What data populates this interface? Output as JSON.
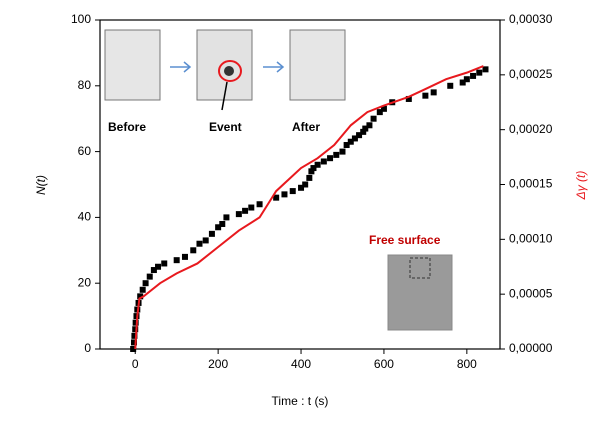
{
  "chart_data": {
    "type": "scatter",
    "xlabel": "Time : t (s)",
    "ylabel": "N(t)",
    "y2label": "Δγ (t)",
    "annotations": [
      "Before",
      "Event",
      "After",
      "Free surface"
    ],
    "xlim": [
      -85,
      880
    ],
    "ylim": [
      0,
      100
    ],
    "y2lim": [
      0,
      0.0003
    ],
    "xticks": [
      0,
      200,
      400,
      600,
      800
    ],
    "yticks": [
      0,
      20,
      40,
      60,
      80,
      100
    ],
    "y2ticks": [
      {
        "value": 0,
        "label": "0,00000"
      },
      {
        "value": 5e-05,
        "label": "0,00005"
      },
      {
        "value": 0.0001,
        "label": "0,00010"
      },
      {
        "value": 0.00015,
        "label": "0,00015"
      },
      {
        "value": 0.0002,
        "label": "0,00020"
      },
      {
        "value": 0.00025,
        "label": "0,00025"
      },
      {
        "value": 0.0003,
        "label": "0,00030"
      }
    ],
    "series": [
      {
        "type": "scatter",
        "color": "#000000",
        "x": [
          -5,
          -3,
          -2,
          0,
          1,
          3,
          5,
          8,
          12,
          18,
          25,
          35,
          45,
          55,
          70,
          100,
          120,
          140,
          155,
          170,
          185,
          200,
          210,
          220,
          250,
          265,
          280,
          300,
          340,
          360,
          380,
          400,
          410,
          420,
          425,
          430,
          440,
          455,
          470,
          485,
          500,
          510,
          520,
          530,
          540,
          550,
          555,
          565,
          575,
          590,
          600,
          620,
          660,
          700,
          720,
          760,
          790,
          800,
          815,
          830,
          845
        ],
        "values": [
          0,
          2,
          4,
          6,
          8,
          10,
          12,
          14,
          16,
          18,
          20,
          22,
          24,
          25,
          26,
          27,
          28,
          30,
          32,
          33,
          35,
          37,
          38,
          40,
          41,
          42,
          43,
          44,
          46,
          47,
          48,
          49,
          50,
          52,
          54,
          55,
          56,
          57,
          58,
          59,
          60,
          62,
          63,
          64,
          65,
          66,
          67,
          68,
          70,
          72,
          73,
          75,
          76,
          77,
          78,
          80,
          81,
          82,
          83,
          84,
          85
        ]
      },
      {
        "type": "line",
        "axis": "y2",
        "color": "#e8191e",
        "x": [
          0,
          5,
          10,
          20,
          60,
          100,
          150,
          200,
          250,
          300,
          320,
          340,
          400,
          440,
          480,
          520,
          560,
          600,
          660,
          700,
          750,
          800,
          840
        ],
        "values": [
          0,
          3e-05,
          4.6e-05,
          4.8e-05,
          6e-05,
          6.9e-05,
          7.8e-05,
          9.3e-05,
          0.000108,
          0.00012,
          0.000132,
          0.000144,
          0.000165,
          0.000174,
          0.000186,
          0.000204,
          0.000216,
          0.000222,
          0.00023,
          0.000237,
          0.000246,
          0.000252,
          0.000258
        ]
      }
    ]
  }
}
